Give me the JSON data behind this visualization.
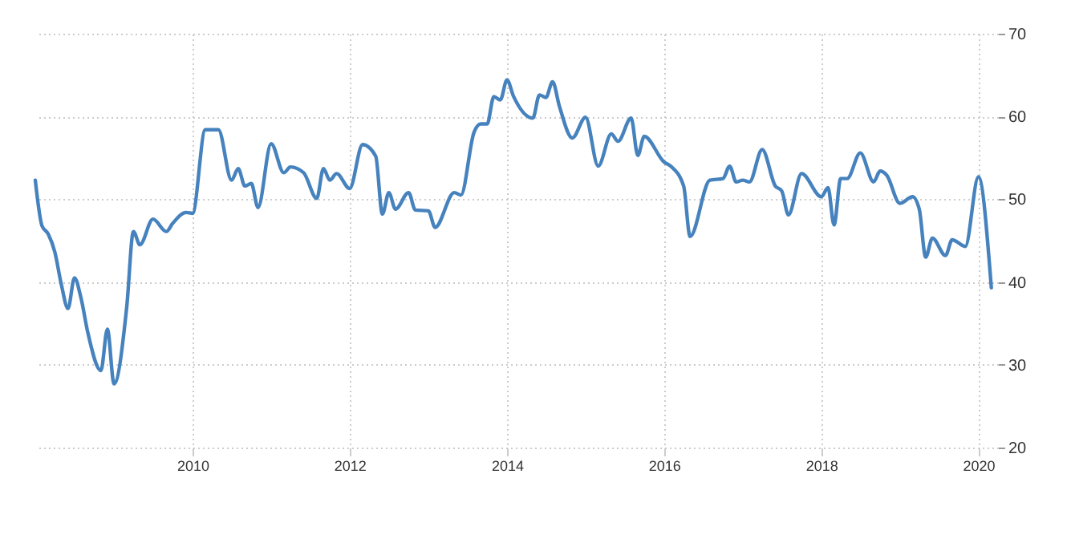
{
  "chart_data": {
    "type": "line",
    "xlim": [
      "2008-01",
      "2020-04"
    ],
    "ylim": [
      20,
      70
    ],
    "xticks": [
      "2010",
      "2012",
      "2014",
      "2016",
      "2018",
      "2020"
    ],
    "yticks": [
      20,
      30,
      40,
      50,
      60,
      70
    ],
    "grid": true,
    "x": [
      "2008-01",
      "2008-02",
      "2008-03",
      "2008-04",
      "2008-05",
      "2008-06",
      "2008-07",
      "2008-08",
      "2008-09",
      "2008-11",
      "2008-12",
      "2009-01",
      "2009-03",
      "2009-04",
      "2009-05",
      "2009-07",
      "2009-09",
      "2009-10",
      "2009-12",
      "2010-01",
      "2010-03",
      "2010-05",
      "2010-07",
      "2010-08",
      "2010-09",
      "2010-10",
      "2010-11",
      "2011-01",
      "2011-03",
      "2011-04",
      "2011-06",
      "2011-08",
      "2011-09",
      "2011-10",
      "2011-11",
      "2012-01",
      "2012-03",
      "2012-05",
      "2012-06",
      "2012-07",
      "2012-08",
      "2012-10",
      "2012-11",
      "2013-01",
      "2013-02",
      "2013-05",
      "2013-06",
      "2013-08",
      "2013-09",
      "2013-10",
      "2013-11",
      "2013-12",
      "2014-01",
      "2014-02",
      "2014-05",
      "2014-06",
      "2014-07",
      "2014-08",
      "2014-09",
      "2014-11",
      "2015-01",
      "2015-03",
      "2015-05",
      "2015-06",
      "2015-08",
      "2015-09",
      "2015-10",
      "2016-01",
      "2016-02",
      "2016-04",
      "2016-05",
      "2016-08",
      "2016-10",
      "2016-11",
      "2016-12",
      "2017-01",
      "2017-02",
      "2017-04",
      "2017-06",
      "2017-07",
      "2017-08",
      "2017-10",
      "2018-01",
      "2018-02",
      "2018-03",
      "2018-04",
      "2018-05",
      "2018-07",
      "2018-09",
      "2018-10",
      "2018-11",
      "2019-01",
      "2019-03",
      "2019-04",
      "2019-05",
      "2019-06",
      "2019-08",
      "2019-09",
      "2019-11",
      "2020-01",
      "2020-03"
    ],
    "series": [
      {
        "color": "#4682bd",
        "values": [
          52.3,
          46.8,
          45.8,
          43.6,
          39.7,
          36.8,
          40.5,
          38,
          33.9,
          29.3,
          34.3,
          27.7,
          37,
          46.1,
          44.5,
          47.6,
          46.1,
          47.1,
          48.4,
          48.3,
          58.4,
          58.4,
          52.3,
          53.7,
          51.6,
          51.9,
          49,
          56.7,
          53.2,
          53.9,
          53.2,
          50.1,
          53.7,
          52.3,
          53.1,
          51.3,
          56.6,
          55.2,
          48.2,
          50.8,
          48.8,
          50.8,
          48.7,
          48.6,
          46.6,
          50.8,
          50.5,
          58.1,
          59.1,
          59.1,
          62.4,
          62,
          64.4,
          62.4,
          59.8,
          62.6,
          62.3,
          64.2,
          61.3,
          57.4,
          59.9,
          54,
          57.9,
          57,
          59.8,
          55.3,
          57.6,
          54.5,
          54,
          51.6,
          45.5,
          52.3,
          52.5,
          54,
          52.1,
          52.3,
          52.1,
          56,
          51.6,
          51,
          48.1,
          53.1,
          50.3,
          51.4,
          46.9,
          52.5,
          52.5,
          55.6,
          52.1,
          53.4,
          52.9,
          49.5,
          50.3,
          48.8,
          43,
          45.3,
          43.2,
          45.1,
          44.3,
          52.7,
          39.3
        ]
      }
    ]
  }
}
